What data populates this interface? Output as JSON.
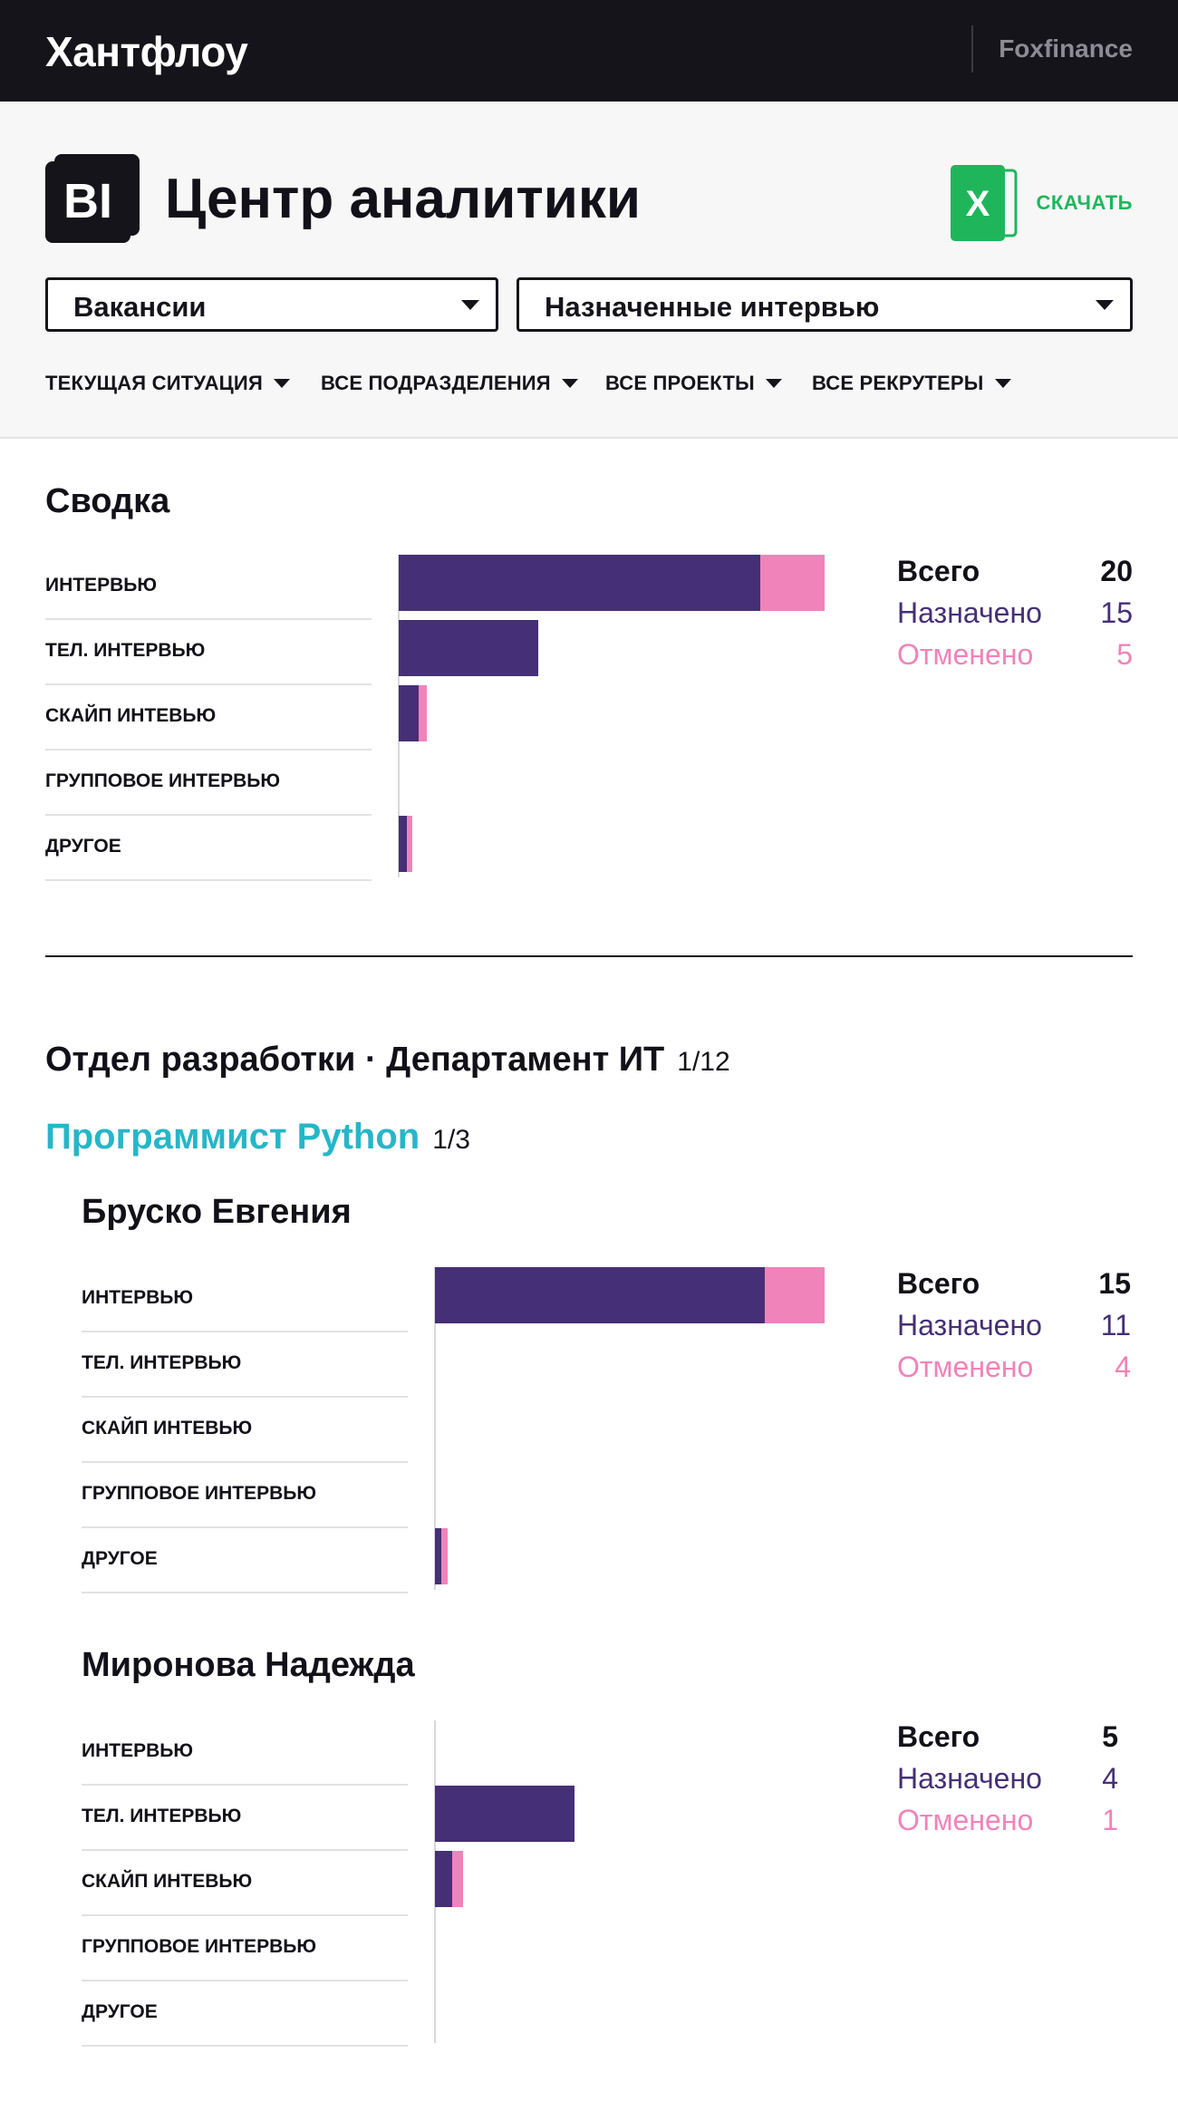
{
  "header": {
    "brand": "Хантфлоу",
    "company": "Foxfinance"
  },
  "hero": {
    "logo_text": "BI",
    "title": "Центр аналитики",
    "download_label": "СКАЧАТЬ",
    "excel_letter": "X",
    "select_primary": "Вакансии",
    "select_metric": "Назначенные интервью",
    "filters": [
      "ТЕКУЩАЯ СИТУАЦИЯ",
      "ВСЕ ПОДРАЗДЕЛЕНИЯ",
      "ВСЕ ПРОЕКТЫ",
      "ВСЕ РЕКРУТЕРЫ"
    ]
  },
  "colors": {
    "assigned": "#452f76",
    "cancelled": "#f083b9",
    "accent": "#26b6c8",
    "excel": "#1fb65b"
  },
  "summary": {
    "title": "Сводка"
  },
  "department": {
    "name": "Отдел разработки · Департамент ИТ",
    "count": "1/12"
  },
  "project": {
    "name": "Программист Python",
    "count": "1/3"
  },
  "stat_labels": {
    "total": "Всего",
    "assigned": "Назначено",
    "cancelled": "Отменено"
  },
  "chart_data": [
    {
      "type": "bar",
      "title": "Сводка",
      "categories": [
        "ИНТЕРВЬЮ",
        "ТЕЛ. ИНТЕРВЬЮ",
        "СКАЙП ИНТЕВЬЮ",
        "ГРУППОВОЕ ИНТЕРВЬЮ",
        "ДРУГОЕ"
      ],
      "stacked": true,
      "series": [
        {
          "name": "Назначено",
          "values": [
            13,
            5,
            0.7,
            0,
            0.3
          ]
        },
        {
          "name": "Отменено",
          "values": [
            2.3,
            0,
            0.3,
            0,
            0.2
          ]
        }
      ],
      "xlim": [
        0,
        15.3
      ],
      "totals": {
        "total": "20",
        "assigned": "15",
        "cancelled": "5"
      }
    },
    {
      "type": "bar",
      "title": "Бруско Евгения",
      "categories": [
        "ИНТЕРВЬЮ",
        "ТЕЛ. ИНТЕРВЬЮ",
        "СКАЙП ИНТЕВЬЮ",
        "ГРУППОВОЕ ИНТЕРВЬЮ",
        "ДРУГОЕ"
      ],
      "stacked": true,
      "series": [
        {
          "name": "Назначено",
          "values": [
            11,
            0,
            0,
            0,
            0.2
          ]
        },
        {
          "name": "Отменено",
          "values": [
            2,
            0,
            0,
            0,
            0.2
          ]
        }
      ],
      "xlim": [
        0,
        13
      ],
      "totals": {
        "total": "15",
        "assigned": "11",
        "cancelled": "4"
      }
    },
    {
      "type": "bar",
      "title": "Миронова Надежда",
      "categories": [
        "ИНТЕРВЬЮ",
        "ТЕЛ. ИНТЕРВЬЮ",
        "СКАЙП ИНТЕВЬЮ",
        "ГРУППОВОЕ ИНТЕРВЬЮ",
        "ДРУГОЕ"
      ],
      "stacked": true,
      "series": [
        {
          "name": "Назначено",
          "values": [
            0,
            4,
            0.5,
            0,
            0
          ]
        },
        {
          "name": "Отменено",
          "values": [
            0,
            0,
            0.3,
            0,
            0
          ]
        }
      ],
      "xlim": [
        0,
        11.2
      ],
      "totals": {
        "total": "5",
        "assigned": "4",
        "cancelled": "1"
      }
    }
  ]
}
